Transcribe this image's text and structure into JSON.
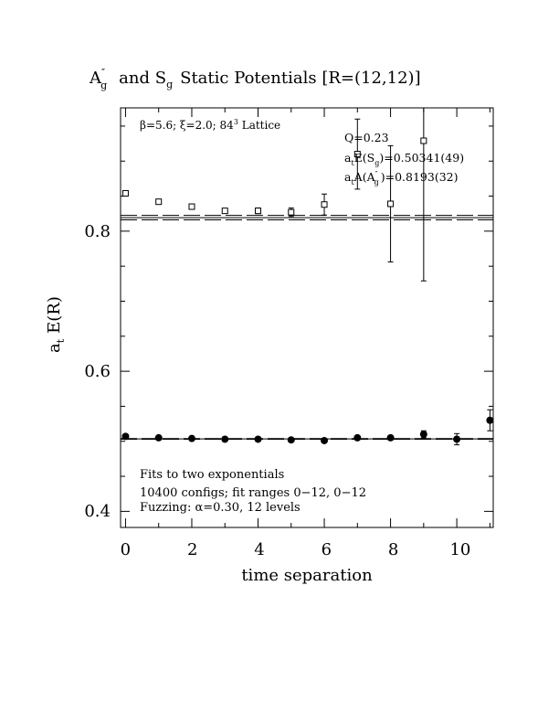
{
  "chart_data": {
    "type": "scatter",
    "title": {
      "main": "A",
      "main_sup": "″",
      "main_sub": "g",
      "mid": "and S",
      "mid_sub": "g",
      "end": "Static Potentials [R=(12,12)]"
    },
    "xlabel": "time separation",
    "ylabel": {
      "main": "a",
      "sub": "t",
      "rest": "E(R)"
    },
    "xlim": [
      -0.15,
      11.1
    ],
    "ylim": [
      0.377,
      0.976
    ],
    "x_ticks": [
      0,
      2,
      4,
      6,
      8,
      10
    ],
    "y_ticks": [
      0.4,
      0.6,
      0.8
    ],
    "x_tick_labels": [
      "0",
      "2",
      "4",
      "6",
      "8",
      "10"
    ],
    "y_tick_labels": [
      "0.4",
      "0.6",
      "0.8"
    ],
    "grid": false,
    "header": {
      "lattice_prefix": "β=5.6; ξ=2.0; 84",
      "lattice_sup": "3",
      "lattice_suffix": " Lattice"
    },
    "fit_info": {
      "q": "Q=0.23",
      "sg_prefix": "a",
      "sg_sub": "t",
      "sg_mid": "E(S",
      "sg_sub2": "g",
      "sg_end": ")=0.50341(49)",
      "ag_prefix": "a",
      "ag_sub": "t",
      "ag_mid": "A(A",
      "ag_sup": "″",
      "ag_sub2": "g",
      "ag_end": ")=0.8193(32)"
    },
    "notes": [
      "Fits to two exponentials",
      "10400 configs; fit ranges 0−12, 0−12",
      "Fuzzing: α=0.30, 12 levels"
    ],
    "fit_lines": [
      {
        "name": "A_g fit",
        "value": 0.8193,
        "err": 0.0032
      },
      {
        "name": "S_g fit",
        "value": 0.50341,
        "err": 0.00049
      }
    ],
    "series": [
      {
        "marker": "open-square",
        "color": "#000000",
        "points": [
          {
            "x": 0,
            "y": 0.854,
            "err": 0.002
          },
          {
            "x": 1,
            "y": 0.842,
            "err": 0.002
          },
          {
            "x": 2,
            "y": 0.835,
            "err": 0.003
          },
          {
            "x": 3,
            "y": 0.829,
            "err": 0.003
          },
          {
            "x": 4,
            "y": 0.829,
            "err": 0.004
          },
          {
            "x": 5,
            "y": 0.827,
            "err": 0.006
          },
          {
            "x": 6,
            "y": 0.838,
            "err": 0.015
          },
          {
            "x": 7,
            "y": 0.91,
            "err": 0.05
          },
          {
            "x": 8,
            "y": 0.839,
            "err": 0.083
          },
          {
            "x": 9,
            "y": 0.929,
            "err": 0.2
          }
        ]
      },
      {
        "marker": "filled-circle",
        "color": "#000000",
        "points": [
          {
            "x": 0,
            "y": 0.507,
            "err": 0.003
          },
          {
            "x": 1,
            "y": 0.505,
            "err": 0.002
          },
          {
            "x": 2,
            "y": 0.504,
            "err": 0.002
          },
          {
            "x": 3,
            "y": 0.503,
            "err": 0.002
          },
          {
            "x": 4,
            "y": 0.503,
            "err": 0.002
          },
          {
            "x": 5,
            "y": 0.502,
            "err": 0.002
          },
          {
            "x": 6,
            "y": 0.501,
            "err": 0.002
          },
          {
            "x": 7,
            "y": 0.505,
            "err": 0.003
          },
          {
            "x": 8,
            "y": 0.505,
            "err": 0.003
          },
          {
            "x": 9,
            "y": 0.51,
            "err": 0.005
          },
          {
            "x": 10,
            "y": 0.503,
            "err": 0.008
          },
          {
            "x": 11,
            "y": 0.53,
            "err": 0.015
          }
        ]
      }
    ]
  }
}
